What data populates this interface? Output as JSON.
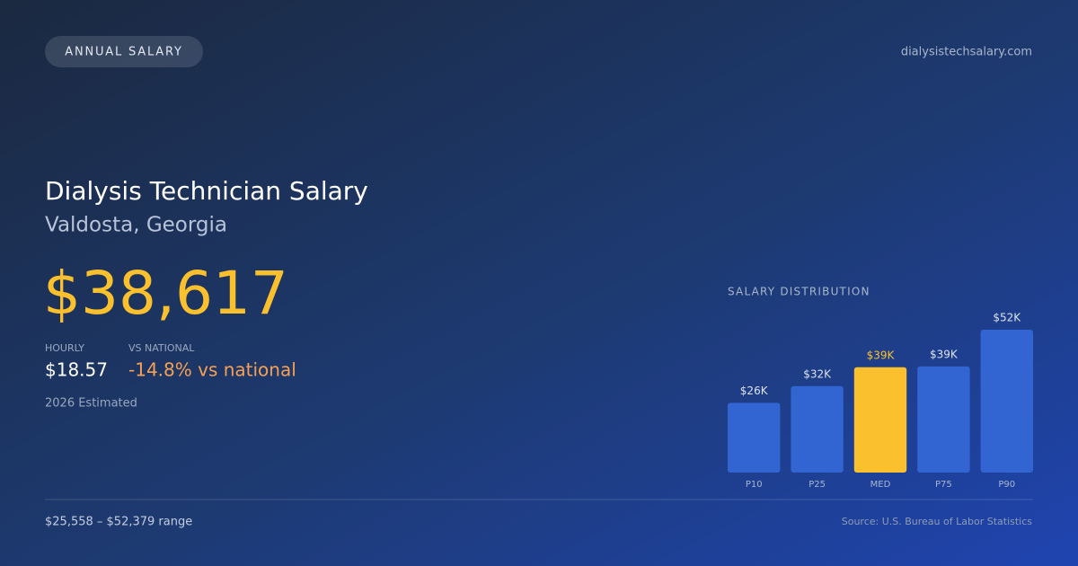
{
  "header": {
    "badge": "ANNUAL SALARY",
    "site": "dialysistechsalary.com"
  },
  "hero": {
    "title": "Dialysis Technician Salary",
    "location": "Valdosta, Georgia",
    "salary": "$38,617",
    "note": "2026 Estimated"
  },
  "stats": {
    "hourly_label": "HOURLY",
    "hourly": "$18.57",
    "vs_label": "VS NATIONAL",
    "vs": "-14.8% vs national"
  },
  "footer": {
    "range": "$25,558 – $52,379 range",
    "source": "Source: U.S. Bureau of Labor Statistics"
  },
  "chart_data": {
    "type": "bar",
    "title": "SALARY DISTRIBUTION",
    "categories": [
      "P10",
      "P25",
      "MED",
      "P75",
      "P90"
    ],
    "values": [
      25558,
      31700,
      38617,
      38900,
      52379
    ],
    "value_labels": [
      "$26K",
      "$32K",
      "$39K",
      "$39K",
      "$52K"
    ],
    "color": "#3264d2",
    "highlight_color": "#fbc02d",
    "highlight": 2
  }
}
